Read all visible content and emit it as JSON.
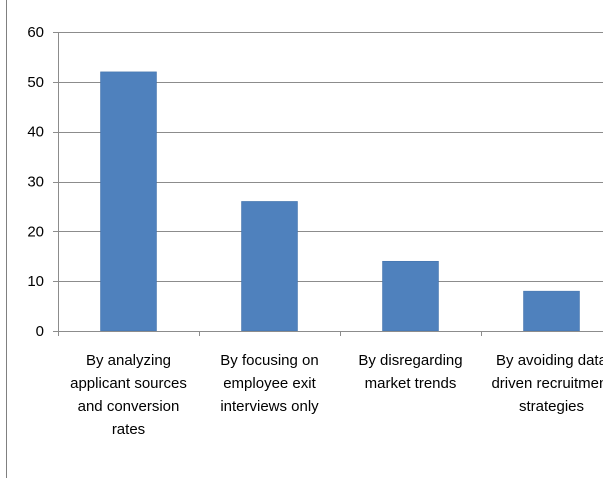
{
  "chart_data": {
    "type": "bar",
    "categories": [
      "By analyzing applicant sources and conversion rates",
      "By focusing on employee exit interviews only",
      "By disregarding market trends",
      "By avoiding data driven recruitment strategies"
    ],
    "category_lines": [
      [
        "By analyzing",
        "applicant sources",
        "and conversion",
        "rates"
      ],
      [
        "By focusing on",
        "employee exit",
        "interviews only"
      ],
      [
        "By disregarding",
        "market trends"
      ],
      [
        "By avoiding data",
        "driven recruitment",
        "strategies"
      ]
    ],
    "values": [
      52,
      26,
      14,
      8
    ],
    "ylim": [
      0,
      60
    ],
    "yticks": [
      "0",
      "10",
      "20",
      "30",
      "40",
      "50",
      "60"
    ],
    "title": "",
    "xlabel": "",
    "ylabel": "",
    "grid": true,
    "legend": "none",
    "colors": {
      "bar": "#4F81BD",
      "bar_edge": "#3F6FA8",
      "grid": "#8C8C8C",
      "axis": "#8C8C8C",
      "frame": "#808080",
      "text": "#000000"
    }
  }
}
